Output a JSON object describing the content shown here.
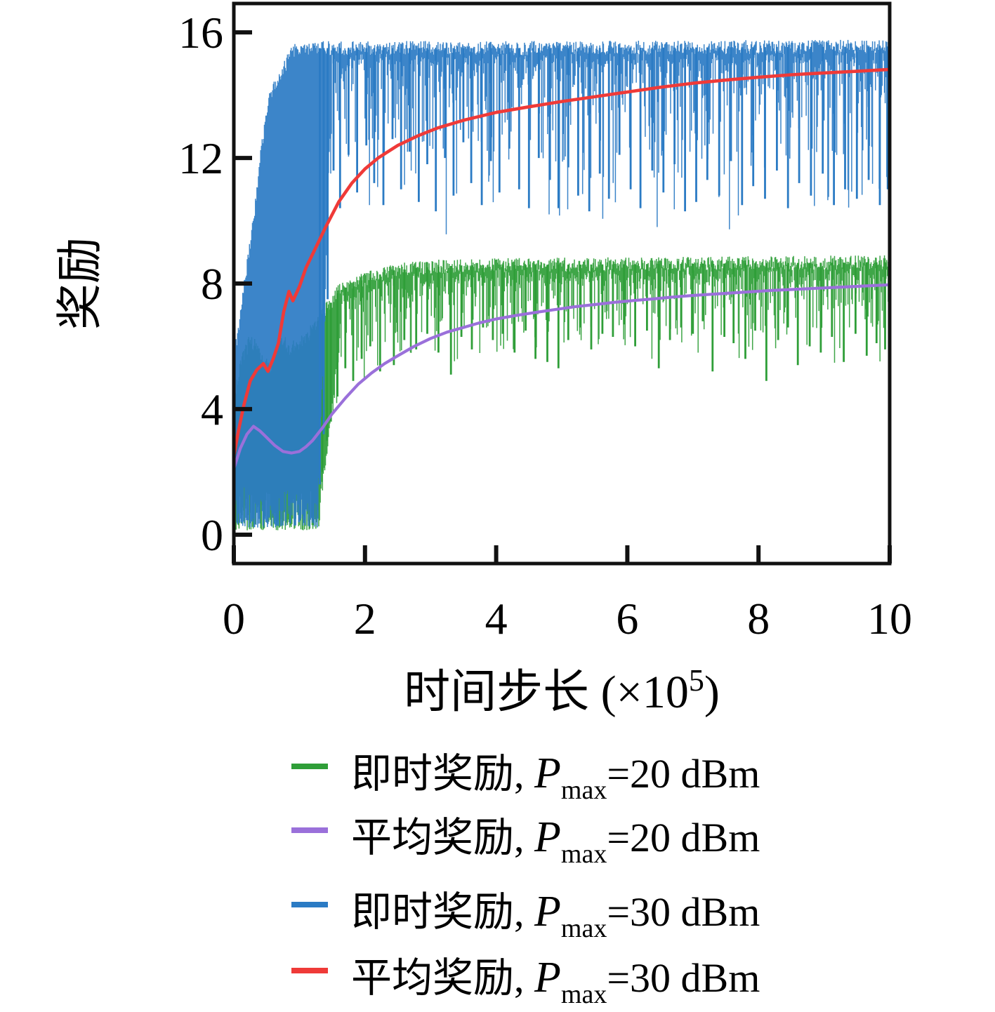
{
  "chart_data": {
    "type": "line",
    "title": "",
    "ylabel": "奖励",
    "xlabel": {
      "text": "时间步长",
      "unit_prefix": " (×10",
      "unit_sup": "5",
      "unit_suffix": ")"
    },
    "xlim": [
      0,
      10
    ],
    "ylim": [
      -0.92,
      16.92
    ],
    "x_ticks": [
      0,
      2,
      4,
      6,
      8,
      10
    ],
    "y_ticks": [
      0,
      4,
      8,
      12,
      16
    ],
    "grid": false,
    "axis_color": "#111111",
    "legend_position": "below-plot",
    "series": [
      {
        "id": "instant-20dbm",
        "style": "noisy",
        "color": "#2f9e38",
        "seed": 7,
        "band_bottom": 0.12,
        "band_end_x": 1.3,
        "transition_width": 0.35,
        "spike_depth": 2.3,
        "top_envelope": [
          [
            0,
            4.3
          ],
          [
            0.1,
            5.4
          ],
          [
            0.25,
            6.2
          ],
          [
            0.4,
            5.8
          ],
          [
            0.55,
            5.2
          ],
          [
            0.7,
            6.3
          ],
          [
            0.85,
            5.9
          ],
          [
            1.0,
            6.1
          ],
          [
            1.15,
            6.4
          ],
          [
            1.3,
            6.9
          ],
          [
            1.45,
            7.3
          ],
          [
            1.6,
            7.75
          ],
          [
            1.8,
            8.0
          ],
          [
            2.1,
            8.2
          ],
          [
            2.4,
            8.4
          ],
          [
            2.8,
            8.5
          ],
          [
            3.5,
            8.58
          ],
          [
            5.0,
            8.6
          ],
          [
            7.0,
            8.63
          ],
          [
            10.0,
            8.68
          ]
        ],
        "spikes": [
          [
            1.35,
            2.0
          ],
          [
            1.42,
            3.0
          ],
          [
            1.48,
            3.6
          ],
          [
            1.58,
            4.4
          ],
          [
            1.7,
            5.3
          ],
          [
            1.82,
            4.9
          ],
          [
            1.95,
            5.6
          ],
          [
            2.08,
            6.0
          ],
          [
            2.23,
            5.2
          ],
          [
            2.44,
            5.4
          ],
          [
            2.6,
            6.2
          ],
          [
            2.78,
            5.9
          ],
          [
            2.95,
            6.4
          ],
          [
            3.12,
            5.8
          ],
          [
            3.31,
            5.1
          ],
          [
            3.47,
            6.3
          ],
          [
            3.63,
            5.9
          ],
          [
            3.8,
            6.6
          ],
          [
            3.95,
            6.2
          ],
          [
            4.1,
            6.4
          ],
          [
            4.28,
            5.8
          ],
          [
            4.45,
            6.5
          ],
          [
            4.6,
            5.6
          ],
          [
            4.78,
            5.5
          ],
          [
            4.95,
            5.3
          ],
          [
            5.1,
            6.2
          ],
          [
            5.28,
            6.6
          ],
          [
            5.45,
            5.9
          ],
          [
            5.62,
            6.4
          ],
          [
            5.78,
            6.3
          ],
          [
            5.95,
            6.7
          ],
          [
            6.12,
            6.0
          ],
          [
            6.3,
            6.5
          ],
          [
            6.48,
            5.3
          ],
          [
            6.65,
            6.2
          ],
          [
            6.82,
            6.6
          ],
          [
            7.0,
            6.4
          ],
          [
            7.15,
            6.8
          ],
          [
            7.3,
            5.2
          ],
          [
            7.48,
            6.3
          ],
          [
            7.62,
            6.1
          ],
          [
            7.8,
            5.6
          ],
          [
            7.95,
            6.5
          ],
          [
            8.12,
            4.9
          ],
          [
            8.3,
            6.2
          ],
          [
            8.45,
            6.6
          ],
          [
            8.6,
            5.4
          ],
          [
            8.78,
            6.0
          ],
          [
            8.95,
            5.8
          ],
          [
            9.12,
            6.3
          ],
          [
            9.3,
            5.5
          ],
          [
            9.48,
            6.4
          ],
          [
            9.65,
            5.7
          ],
          [
            9.8,
            6.1
          ],
          [
            9.93,
            5.9
          ]
        ]
      },
      {
        "id": "instant-30dbm",
        "style": "noisy",
        "color": "#2b7bc4",
        "seed": 23,
        "band_bottom": 0.2,
        "band_end_x": 1.28,
        "transition_width": 0.22,
        "spike_depth": 4.3,
        "top_envelope": [
          [
            0,
            5.5
          ],
          [
            0.1,
            7.0
          ],
          [
            0.2,
            8.5
          ],
          [
            0.3,
            10.0
          ],
          [
            0.4,
            12.0
          ],
          [
            0.5,
            13.5
          ],
          [
            0.6,
            14.3
          ],
          [
            0.7,
            14.6
          ],
          [
            0.8,
            15.0
          ],
          [
            0.9,
            15.4
          ],
          [
            1.1,
            15.5
          ],
          [
            2.0,
            15.5
          ],
          [
            5.0,
            15.5
          ],
          [
            10.0,
            15.55
          ]
        ],
        "spikes": [
          [
            1.31,
            1.6
          ],
          [
            1.37,
            3.2
          ],
          [
            1.43,
            7.5
          ],
          [
            1.52,
            11.6
          ],
          [
            1.62,
            10.4
          ],
          [
            1.75,
            12.1
          ],
          [
            1.88,
            10.9
          ],
          [
            2.02,
            12.4
          ],
          [
            2.14,
            11.2
          ],
          [
            2.28,
            10.5
          ],
          [
            2.42,
            12.6
          ],
          [
            2.55,
            11.0
          ],
          [
            2.68,
            12.2
          ],
          [
            2.82,
            10.6
          ],
          [
            2.95,
            11.8
          ],
          [
            3.08,
            10.3
          ],
          [
            3.22,
            12.0
          ],
          [
            3.35,
            10.8
          ],
          [
            3.5,
            12.5
          ],
          [
            3.62,
            11.2
          ],
          [
            3.78,
            10.5
          ],
          [
            3.92,
            11.9
          ],
          [
            4.05,
            10.9
          ],
          [
            4.2,
            12.3
          ],
          [
            4.35,
            11.0
          ],
          [
            4.5,
            10.4
          ],
          [
            4.65,
            12.0
          ],
          [
            4.82,
            11.3
          ],
          [
            4.95,
            10.4
          ],
          [
            5.1,
            11.7
          ],
          [
            5.25,
            10.8
          ],
          [
            5.42,
            10.3
          ],
          [
            5.58,
            11.5
          ],
          [
            5.72,
            10.7
          ],
          [
            5.88,
            12.1
          ],
          [
            6.05,
            11.0
          ],
          [
            6.2,
            10.4
          ],
          [
            6.38,
            11.6
          ],
          [
            6.55,
            10.9
          ],
          [
            6.72,
            11.8
          ],
          [
            6.88,
            10.3
          ],
          [
            7.05,
            10.6
          ],
          [
            7.22,
            11.3
          ],
          [
            7.4,
            10.8
          ],
          [
            7.58,
            11.9
          ],
          [
            7.75,
            10.5
          ],
          [
            7.92,
            11.1
          ],
          [
            8.1,
            10.7
          ],
          [
            8.28,
            11.6
          ],
          [
            8.45,
            10.4
          ],
          [
            8.62,
            11.2
          ],
          [
            8.8,
            10.8
          ],
          [
            8.98,
            11.5
          ],
          [
            9.15,
            10.5
          ],
          [
            9.32,
            11.0
          ],
          [
            9.5,
            10.7
          ],
          [
            9.68,
            11.3
          ],
          [
            9.85,
            10.5
          ],
          [
            9.97,
            11.0
          ]
        ]
      },
      {
        "id": "mean-20dbm",
        "style": "mean",
        "color": "#9a70da",
        "line_width": 4.2,
        "points": [
          [
            0,
            2.1
          ],
          [
            0.1,
            2.75
          ],
          [
            0.2,
            3.2
          ],
          [
            0.3,
            3.45
          ],
          [
            0.4,
            3.3
          ],
          [
            0.5,
            3.1
          ],
          [
            0.62,
            2.85
          ],
          [
            0.75,
            2.65
          ],
          [
            0.88,
            2.6
          ],
          [
            1.0,
            2.65
          ],
          [
            1.1,
            2.8
          ],
          [
            1.2,
            3.0
          ],
          [
            1.35,
            3.4
          ],
          [
            1.5,
            3.85
          ],
          [
            1.7,
            4.35
          ],
          [
            1.9,
            4.8
          ],
          [
            2.1,
            5.15
          ],
          [
            2.3,
            5.45
          ],
          [
            2.5,
            5.7
          ],
          [
            2.75,
            6.0
          ],
          [
            3.0,
            6.25
          ],
          [
            3.25,
            6.45
          ],
          [
            3.5,
            6.6
          ],
          [
            3.75,
            6.75
          ],
          [
            4.0,
            6.87
          ],
          [
            4.3,
            6.98
          ],
          [
            4.6,
            7.08
          ],
          [
            4.9,
            7.17
          ],
          [
            5.2,
            7.26
          ],
          [
            5.5,
            7.33
          ],
          [
            5.8,
            7.4
          ],
          [
            6.1,
            7.46
          ],
          [
            6.4,
            7.51
          ],
          [
            6.7,
            7.57
          ],
          [
            7.0,
            7.62
          ],
          [
            7.3,
            7.66
          ],
          [
            7.6,
            7.7
          ],
          [
            7.9,
            7.74
          ],
          [
            8.2,
            7.78
          ],
          [
            8.5,
            7.81
          ],
          [
            8.8,
            7.84
          ],
          [
            9.1,
            7.87
          ],
          [
            9.4,
            7.9
          ],
          [
            9.7,
            7.93
          ],
          [
            10,
            7.96
          ]
        ]
      },
      {
        "id": "mean-30dbm",
        "style": "mean",
        "color": "#ef3a38",
        "line_width": 4.6,
        "points": [
          [
            0,
            2.5
          ],
          [
            0.07,
            3.3
          ],
          [
            0.15,
            4.1
          ],
          [
            0.25,
            4.9
          ],
          [
            0.35,
            5.25
          ],
          [
            0.45,
            5.45
          ],
          [
            0.52,
            5.2
          ],
          [
            0.6,
            5.6
          ],
          [
            0.68,
            6.1
          ],
          [
            0.76,
            7.1
          ],
          [
            0.84,
            7.75
          ],
          [
            0.9,
            7.45
          ],
          [
            1.0,
            7.9
          ],
          [
            1.1,
            8.5
          ],
          [
            1.25,
            9.15
          ],
          [
            1.4,
            9.8
          ],
          [
            1.6,
            10.6
          ],
          [
            1.8,
            11.2
          ],
          [
            2.0,
            11.65
          ],
          [
            2.2,
            12.0
          ],
          [
            2.5,
            12.4
          ],
          [
            2.8,
            12.7
          ],
          [
            3.1,
            12.95
          ],
          [
            3.5,
            13.2
          ],
          [
            4.0,
            13.45
          ],
          [
            4.5,
            13.63
          ],
          [
            5.0,
            13.8
          ],
          [
            5.5,
            13.95
          ],
          [
            6.0,
            14.1
          ],
          [
            6.5,
            14.25
          ],
          [
            7.0,
            14.38
          ],
          [
            7.5,
            14.48
          ],
          [
            8.0,
            14.57
          ],
          [
            8.5,
            14.65
          ],
          [
            9.0,
            14.71
          ],
          [
            9.5,
            14.76
          ],
          [
            10,
            14.82
          ]
        ]
      }
    ]
  },
  "legend": {
    "rows": [
      {
        "series_id": "instant-20dbm",
        "cn": "即时奖励, ",
        "p": "P",
        "sub": "max",
        "value": "=20 dBm"
      },
      {
        "series_id": "mean-20dbm",
        "cn": "平均奖励, ",
        "p": "P",
        "sub": "max",
        "value": "=20 dBm"
      },
      {
        "series_id": "instant-30dbm",
        "cn": "即时奖励, ",
        "p": "P",
        "sub": "max",
        "value": "=30 dBm"
      },
      {
        "series_id": "mean-30dbm",
        "cn": "平均奖励, ",
        "p": "P",
        "sub": "max",
        "value": "=30 dBm"
      }
    ]
  }
}
